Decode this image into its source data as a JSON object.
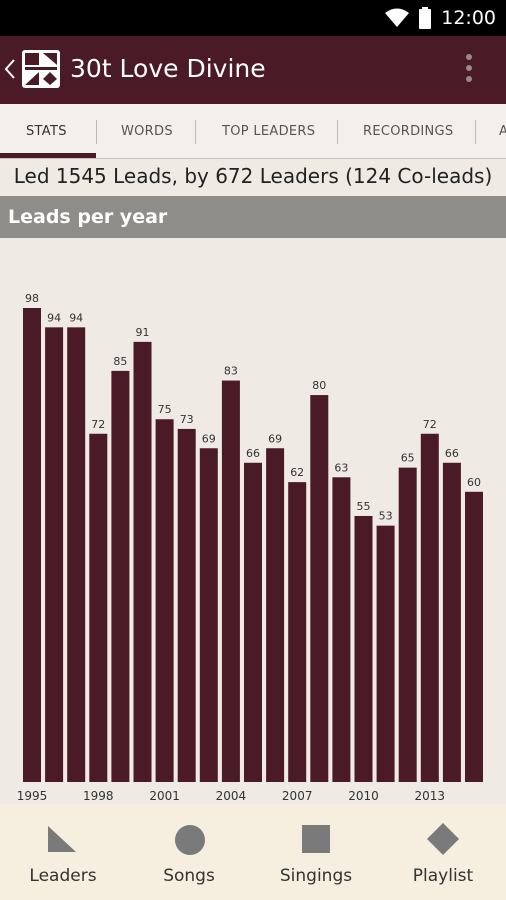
{
  "status_bar": {
    "time": "12:00"
  },
  "app_bar": {
    "title": "30t Love Divine"
  },
  "tabs": [
    {
      "label": "STATS"
    },
    {
      "label": "WORDS"
    },
    {
      "label": "TOP LEADERS"
    },
    {
      "label": "RECORDINGS"
    },
    {
      "label": "A"
    }
  ],
  "summary": "Led 1545 Leads, by 672 Leaders (124 Co-leads)",
  "section_header": "Leads per year",
  "chart_data": {
    "type": "bar",
    "categories": [
      "1995",
      "1996",
      "1997",
      "1998",
      "1999",
      "2000",
      "2001",
      "2002",
      "2003",
      "2004",
      "2005",
      "2006",
      "2007",
      "2008",
      "2009",
      "2010",
      "2011",
      "2012",
      "2013",
      "2014",
      "2015"
    ],
    "values": [
      98,
      94,
      94,
      72,
      85,
      91,
      75,
      73,
      69,
      83,
      66,
      69,
      62,
      80,
      63,
      55,
      53,
      65,
      72,
      66,
      60
    ],
    "x_tick_labels": [
      "1995",
      "1998",
      "2001",
      "2004",
      "2007",
      "2010",
      "2013"
    ],
    "bar_color": "#4a1b27"
  },
  "bottom_nav": [
    {
      "label": "Leaders",
      "icon": "triangle-icon"
    },
    {
      "label": "Songs",
      "icon": "circle-icon"
    },
    {
      "label": "Singings",
      "icon": "square-icon"
    },
    {
      "label": "Playlist",
      "icon": "diamond-icon"
    }
  ]
}
